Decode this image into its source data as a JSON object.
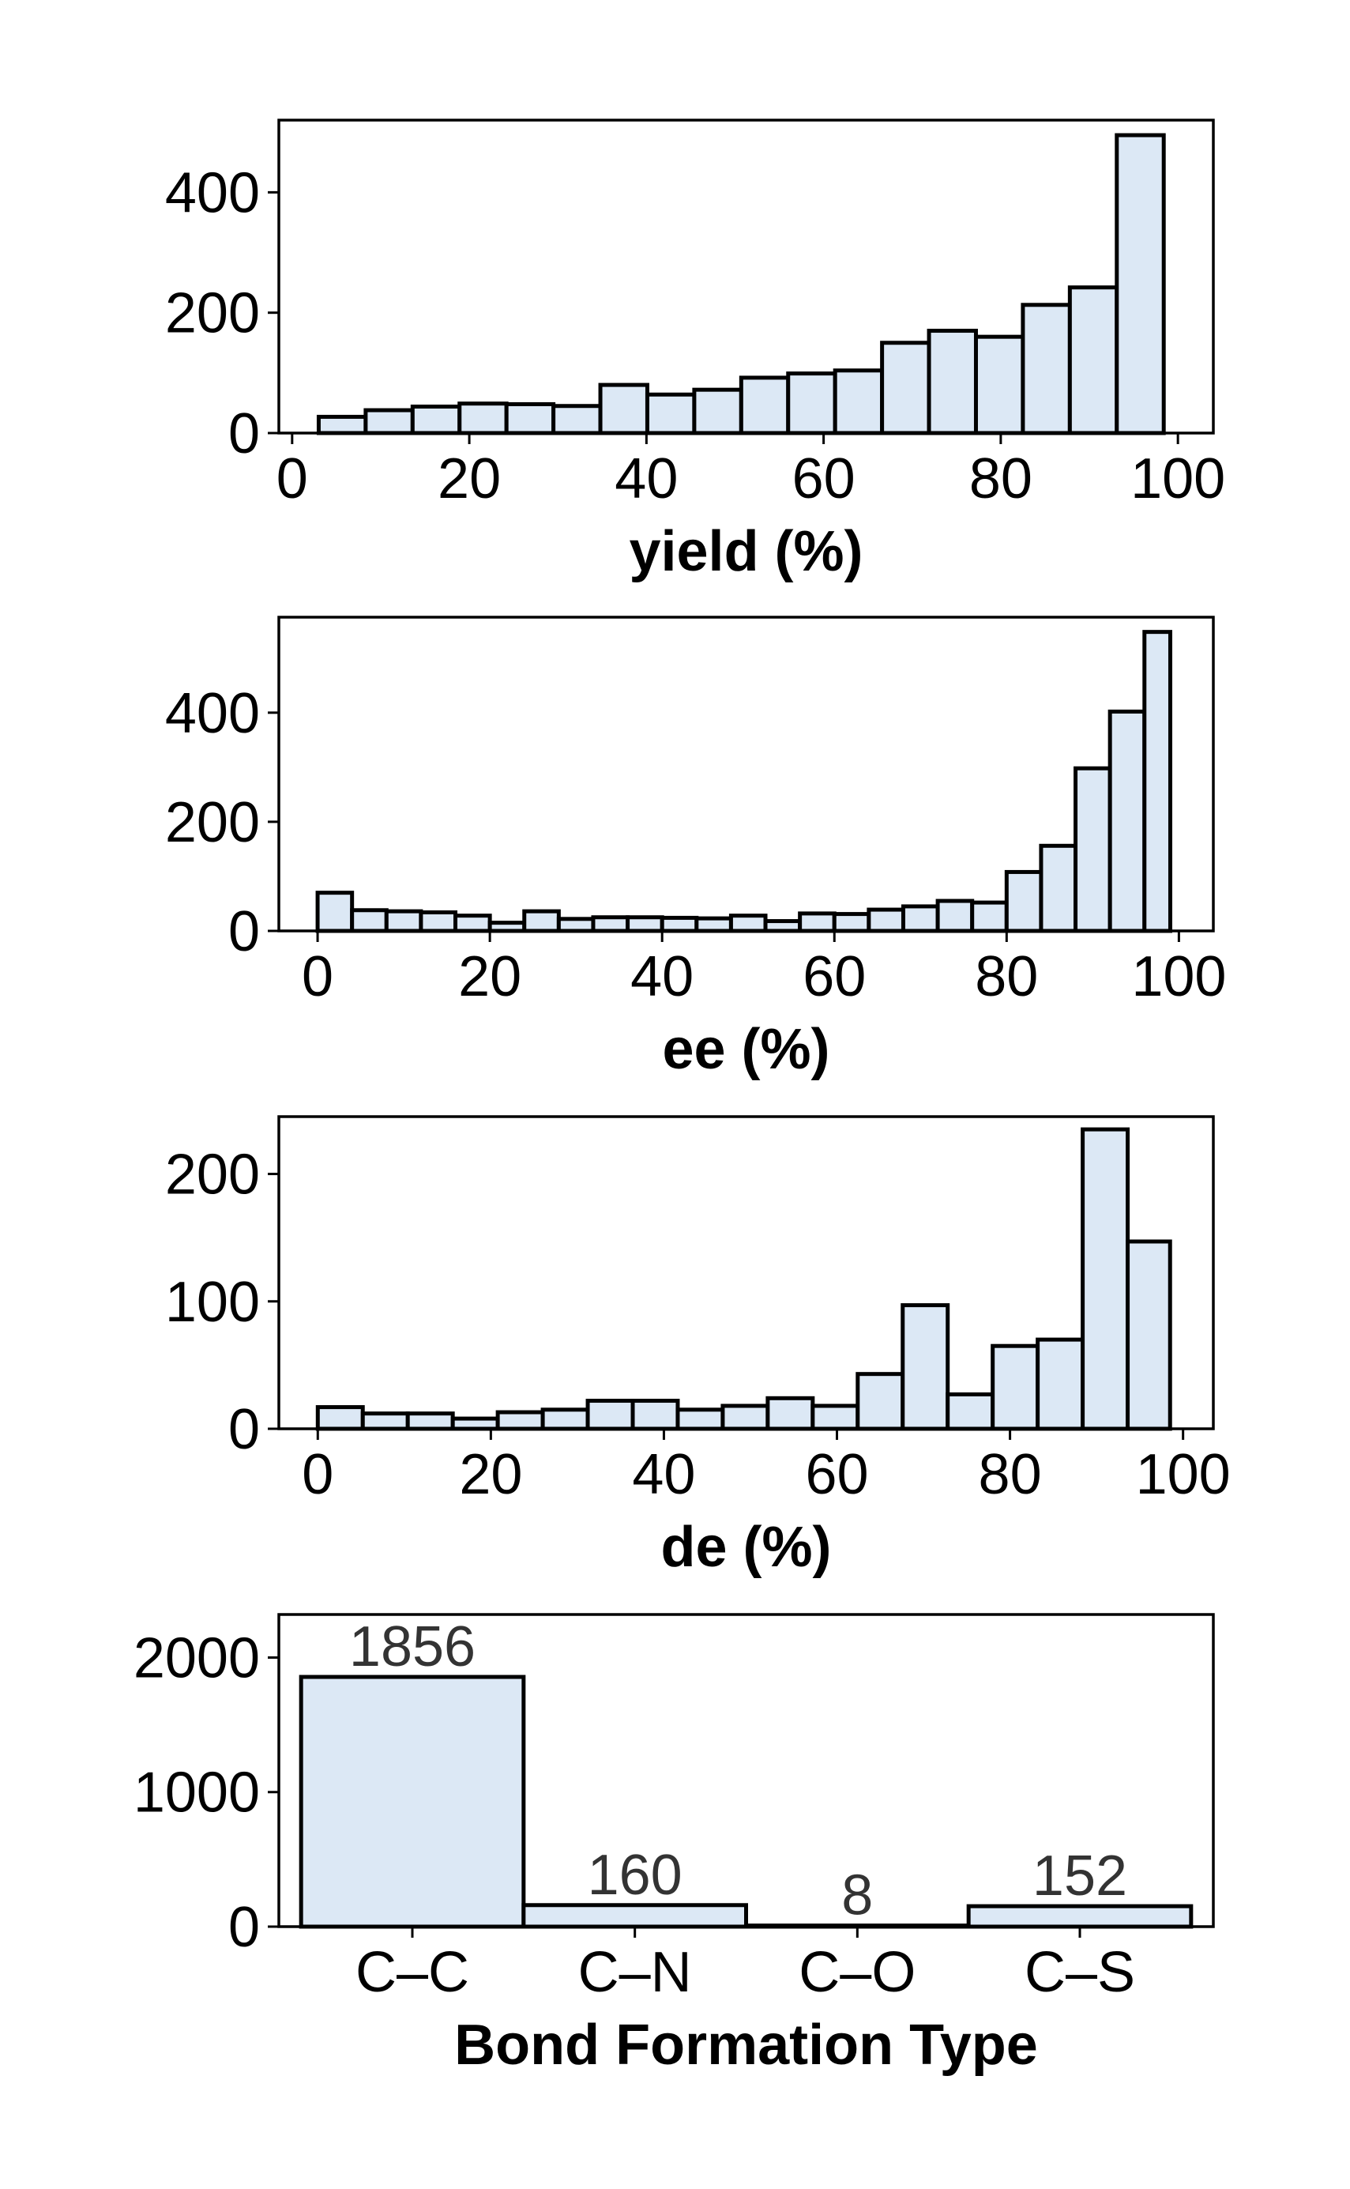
{
  "style": {
    "bar_fill": "#dce8f5",
    "bar_edge": "#000000",
    "background": "#ffffff"
  },
  "chart_data": [
    {
      "type": "bar",
      "chart_kind": "histogram",
      "xlabel": "yield (%)",
      "ylabel": "",
      "xlim": [
        -1.5,
        104
      ],
      "ylim": [
        0,
        520
      ],
      "xticks": [
        "0",
        "20",
        "40",
        "60",
        "80",
        "100"
      ],
      "xtick_values": [
        0,
        20,
        40,
        60,
        80,
        100
      ],
      "yticks": [
        "0",
        "200",
        "400"
      ],
      "ytick_values": [
        0,
        200,
        400
      ],
      "bin_edges": [
        3,
        8.3,
        13.6,
        18.9,
        24.2,
        29.5,
        34.8,
        40.1,
        45.4,
        50.7,
        56,
        61.3,
        66.6,
        71.9,
        77.2,
        82.5,
        87.8,
        93.1,
        98.4
      ],
      "values": [
        27,
        38,
        44,
        49,
        48,
        45,
        80,
        64,
        72,
        92,
        99,
        104,
        150,
        170,
        160,
        213,
        242,
        495
      ],
      "grid": false
    },
    {
      "type": "bar",
      "chart_kind": "histogram",
      "xlabel": "ee (%)",
      "ylabel": "",
      "xlim": [
        -4.5,
        104
      ],
      "ylim": [
        0,
        575
      ],
      "xticks": [
        "0",
        "20",
        "40",
        "60",
        "80",
        "100"
      ],
      "xtick_values": [
        0,
        20,
        40,
        60,
        80,
        100
      ],
      "yticks": [
        "0",
        "200",
        "400"
      ],
      "ytick_values": [
        0,
        200,
        400
      ],
      "bin_edges": [
        0,
        4,
        8,
        12,
        16,
        20,
        24,
        28,
        32,
        36,
        40,
        44,
        48,
        52,
        56,
        60,
        64,
        68,
        72,
        76,
        80,
        84,
        88,
        92,
        96,
        99
      ],
      "values": [
        70,
        38,
        36,
        34,
        28,
        15,
        36,
        22,
        25,
        25,
        24,
        23,
        28,
        18,
        32,
        31,
        39,
        45,
        55,
        52,
        108,
        156,
        298,
        402,
        548
      ],
      "grid": false
    },
    {
      "type": "bar",
      "chart_kind": "histogram",
      "xlabel": "de (%)",
      "ylabel": "",
      "xlim": [
        -4.5,
        103.5
      ],
      "ylim": [
        0,
        245
      ],
      "xticks": [
        "0",
        "20",
        "40",
        "60",
        "80",
        "100"
      ],
      "xtick_values": [
        0,
        20,
        40,
        60,
        80,
        100
      ],
      "yticks": [
        "0",
        "100",
        "200"
      ],
      "ytick_values": [
        0,
        100,
        200
      ],
      "bin_edges": [
        0,
        5.2,
        10.4,
        15.6,
        20.8,
        26,
        31.2,
        36.4,
        41.6,
        46.8,
        52,
        57.2,
        62.4,
        67.6,
        72.8,
        78,
        83.2,
        88.4,
        93.6,
        98.5
      ],
      "values": [
        17,
        12,
        12,
        8,
        13,
        15,
        22,
        22,
        15,
        18,
        24,
        18,
        43,
        97,
        27,
        65,
        70,
        235,
        147
      ],
      "grid": false
    },
    {
      "type": "bar",
      "xlabel": "Bond Formation Type",
      "ylabel": "",
      "categories": [
        "C–C",
        "C–N",
        "C–O",
        "C–S"
      ],
      "values": [
        1856,
        160,
        8,
        152
      ],
      "data_labels": [
        "1856",
        "160",
        "8",
        "152"
      ],
      "ylim": [
        0,
        2320
      ],
      "yticks": [
        "0",
        "1000",
        "2000"
      ],
      "ytick_values": [
        0,
        1000,
        2000
      ],
      "grid": false
    }
  ]
}
